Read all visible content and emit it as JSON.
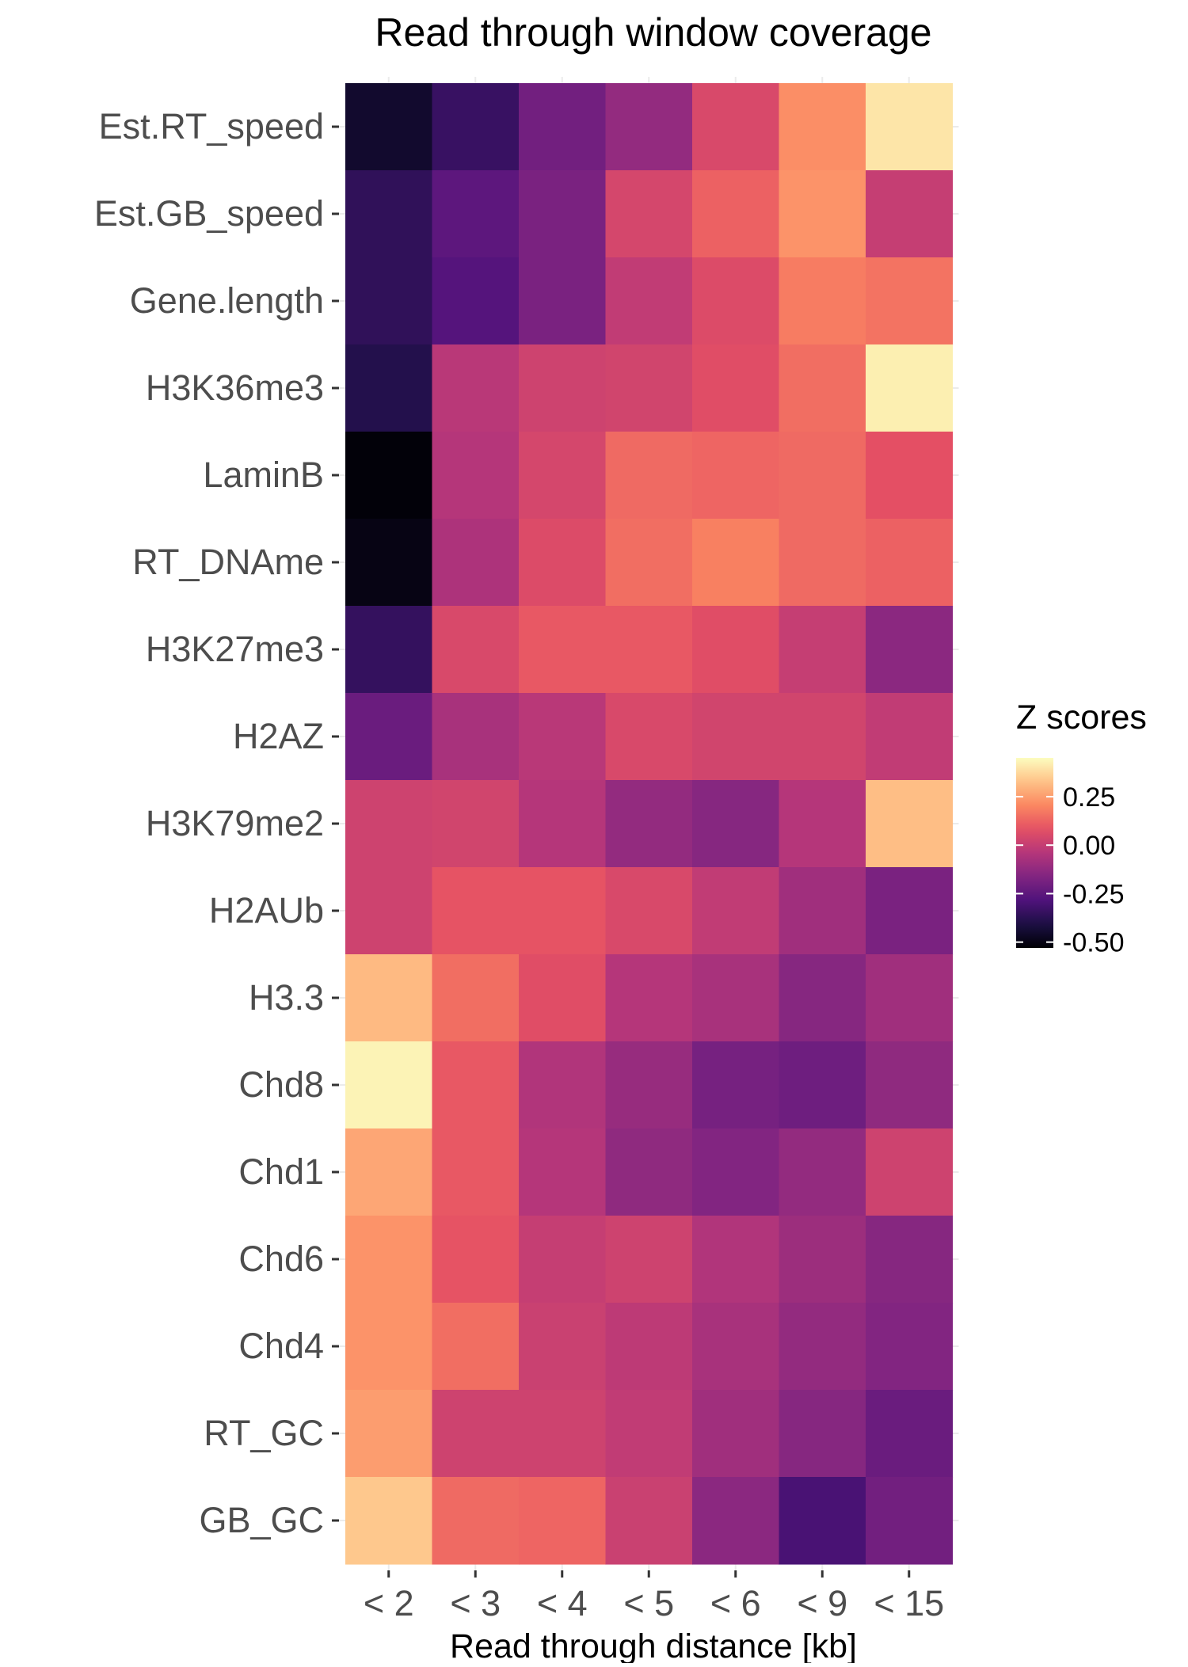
{
  "chart_data": {
    "type": "heatmap",
    "title": "Read through window coverage",
    "xlabel": "Read through distance [kb]",
    "ylabel": "",
    "x_categories": [
      "< 2",
      "< 3",
      "< 4",
      "< 5",
      "< 6",
      "< 9",
      "< 15"
    ],
    "y_categories": [
      "Est.RT_speed",
      "Est.GB_speed",
      "Gene.length",
      "H3K36me3",
      "LaminB",
      "RT_DNAme",
      "H3K27me3",
      "H2AZ",
      "H3K79me2",
      "H2AUb",
      "H3.3",
      "Chd8",
      "Chd1",
      "Chd6",
      "Chd4",
      "RT_GC",
      "GB_GC"
    ],
    "values": [
      [
        -0.45,
        -0.34,
        -0.2,
        -0.12,
        0.05,
        0.22,
        0.4
      ],
      [
        -0.36,
        -0.25,
        -0.18,
        0.04,
        0.12,
        0.23,
        0.0
      ],
      [
        -0.36,
        -0.27,
        -0.18,
        -0.01,
        0.06,
        0.18,
        0.16
      ],
      [
        -0.39,
        -0.03,
        0.02,
        0.03,
        0.07,
        0.15,
        0.42
      ],
      [
        -0.52,
        -0.04,
        0.04,
        0.14,
        0.13,
        0.14,
        0.08
      ],
      [
        -0.5,
        -0.06,
        0.06,
        0.15,
        0.19,
        0.14,
        0.12
      ],
      [
        -0.35,
        0.05,
        0.1,
        0.1,
        0.07,
        0.0,
        -0.14
      ],
      [
        -0.22,
        -0.07,
        -0.03,
        0.05,
        0.03,
        0.03,
        -0.01
      ],
      [
        0.02,
        0.03,
        -0.04,
        -0.12,
        -0.15,
        -0.04,
        0.32
      ],
      [
        0.02,
        0.09,
        0.09,
        0.05,
        -0.01,
        -0.09,
        -0.18
      ],
      [
        0.31,
        0.15,
        0.07,
        -0.04,
        -0.07,
        -0.15,
        -0.09
      ],
      [
        0.43,
        0.1,
        -0.05,
        -0.11,
        -0.19,
        -0.21,
        -0.13
      ],
      [
        0.27,
        0.1,
        -0.04,
        -0.13,
        -0.16,
        -0.12,
        0.02
      ],
      [
        0.23,
        0.09,
        0.0,
        0.02,
        -0.05,
        -0.1,
        -0.15
      ],
      [
        0.23,
        0.15,
        0.01,
        -0.02,
        -0.07,
        -0.12,
        -0.16
      ],
      [
        0.25,
        0.02,
        0.02,
        -0.01,
        -0.09,
        -0.15,
        -0.22
      ],
      [
        0.34,
        0.14,
        0.13,
        0.01,
        -0.14,
        -0.3,
        -0.2
      ]
    ],
    "color_scale": {
      "name": "magma",
      "domain": [
        -0.53,
        0.45
      ],
      "stops": [
        "#000004",
        "#1c1044",
        "#4f127b",
        "#812581",
        "#b5367a",
        "#e55064",
        "#fb8761",
        "#fec287",
        "#fcfdbf"
      ]
    },
    "legend": {
      "title": "Z scores",
      "position": "right",
      "ticks": [
        0.25,
        0.0,
        -0.25,
        -0.5
      ],
      "tick_labels": [
        "0.25",
        "0.00",
        "-0.25",
        "-0.50"
      ]
    },
    "grid": true,
    "theme": "ggplot2 minimal"
  }
}
